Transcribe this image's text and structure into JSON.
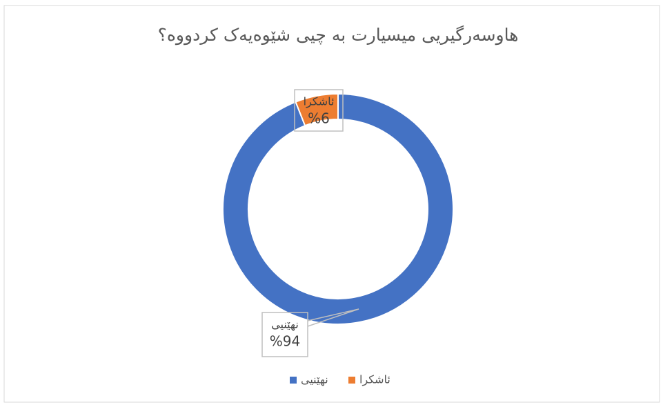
{
  "chart_data": {
    "type": "donut",
    "title": "هاوسەرگیریی میسیارت بە چیی شێوەیەک کردووە؟",
    "categories": [
      "نهێنیی",
      "ئاشکرا"
    ],
    "values": [
      94,
      6
    ],
    "value_labels": [
      "%94",
      "%6"
    ],
    "colors": [
      "#4472c4",
      "#ed7d31"
    ],
    "legend": "bottom"
  }
}
